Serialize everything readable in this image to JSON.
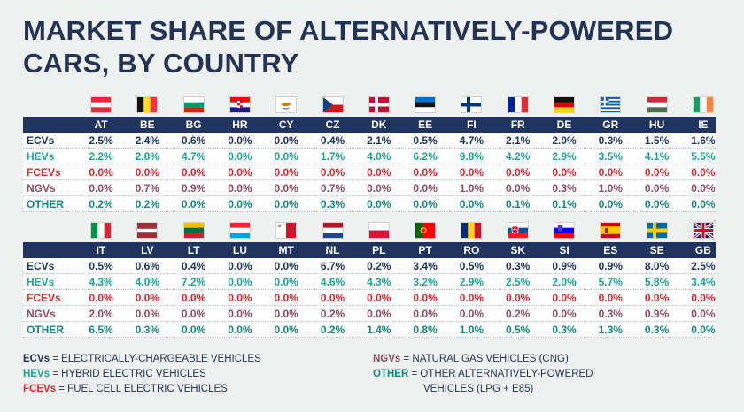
{
  "title": "MARKET SHARE OF ALTERNATIVELY-POWERED CARS, BY COUNTRY",
  "colors": {
    "header_bg": "#1f3560",
    "ECVs": "#1f3560",
    "HEVs": "#1aa58f",
    "FCEVs": "#e0262b",
    "NGVs": "#8c4a5e",
    "OTHER": "#14877f"
  },
  "chart_data": {
    "type": "table",
    "row_labels": [
      "ECVs",
      "HEVs",
      "FCEVs",
      "NGVs",
      "OTHER"
    ],
    "tables": [
      {
        "countries": [
          "AT",
          "BE",
          "BG",
          "HR",
          "CY",
          "CZ",
          "DK",
          "EE",
          "FI",
          "FR",
          "DE",
          "GR",
          "HU",
          "IE"
        ],
        "rows": [
          [
            "2.5%",
            "2.4%",
            "0.6%",
            "0.0%",
            "0.0%",
            "0.4%",
            "2.1%",
            "0.5%",
            "4.7%",
            "2.1%",
            "2.0%",
            "0.3%",
            "1.5%",
            "1.6%"
          ],
          [
            "2.2%",
            "2.8%",
            "4.7%",
            "0.0%",
            "0.0%",
            "1.7%",
            "4.0%",
            "6.2%",
            "9.8%",
            "4.2%",
            "2.9%",
            "3.5%",
            "4.1%",
            "5.5%"
          ],
          [
            "0.0%",
            "0.0%",
            "0.0%",
            "0.0%",
            "0.0%",
            "0.0%",
            "0.0%",
            "0.0%",
            "0.0%",
            "0.0%",
            "0.0%",
            "0.0%",
            "0.0%",
            "0.0%"
          ],
          [
            "0.0%",
            "0.7%",
            "0.9%",
            "0.0%",
            "0.0%",
            "0.7%",
            "0.0%",
            "0.0%",
            "1.0%",
            "0.0%",
            "0.3%",
            "1.0%",
            "0.0%",
            "0.0%"
          ],
          [
            "0.2%",
            "0.2%",
            "0.0%",
            "0.0%",
            "0.0%",
            "0.3%",
            "0.0%",
            "0.0%",
            "0.0%",
            "0.1%",
            "0.1%",
            "0.0%",
            "0.0%",
            "0.0%"
          ]
        ]
      },
      {
        "countries": [
          "IT",
          "LV",
          "LT",
          "LU",
          "MT",
          "NL",
          "PL",
          "PT",
          "RO",
          "SK",
          "SI",
          "ES",
          "SE",
          "GB"
        ],
        "rows": [
          [
            "0.5%",
            "0.6%",
            "0.4%",
            "0.0%",
            "0.0%",
            "6.7%",
            "0.2%",
            "3.4%",
            "0.5%",
            "0.3%",
            "0.9%",
            "0.9%",
            "8.0%",
            "2.5%"
          ],
          [
            "4.3%",
            "4.0%",
            "7.2%",
            "0.0%",
            "0.0%",
            "4.6%",
            "4.3%",
            "3.2%",
            "2.9%",
            "2.5%",
            "2.0%",
            "5.7%",
            "5.8%",
            "3.4%"
          ],
          [
            "0.0%",
            "0.0%",
            "0.0%",
            "0.0%",
            "0.0%",
            "0.0%",
            "0.0%",
            "0.0%",
            "0.0%",
            "0.0%",
            "0.0%",
            "0.0%",
            "0.0%",
            "0.0%"
          ],
          [
            "2.0%",
            "0.0%",
            "0.0%",
            "0.0%",
            "0.0%",
            "0.2%",
            "0.0%",
            "0.0%",
            "0.0%",
            "0.2%",
            "0.0%",
            "0.3%",
            "0.9%",
            "0.0%"
          ],
          [
            "6.5%",
            "0.3%",
            "0.0%",
            "0.0%",
            "0.0%",
            "0.2%",
            "1.4%",
            "0.8%",
            "1.0%",
            "0.5%",
            "0.3%",
            "1.3%",
            "0.3%",
            "0.0%"
          ]
        ]
      }
    ]
  },
  "legend": [
    {
      "abbr": "ECVs",
      "text": " = ELECTRICALLY-CHARGEABLE VEHICLES"
    },
    {
      "abbr": "HEVs",
      "text": " = HYBRID ELECTRIC VEHICLES"
    },
    {
      "abbr": "FCEVs",
      "text": " = FUEL CELL ELECTRIC VEHICLES"
    },
    {
      "abbr": "NGVs",
      "text": " = NATURAL GAS VEHICLES (CNG)"
    },
    {
      "abbr": "OTHER",
      "text": " = OTHER ALTERNATIVELY-POWERED",
      "text2": "VEHICLES (LPG + E85)"
    }
  ]
}
